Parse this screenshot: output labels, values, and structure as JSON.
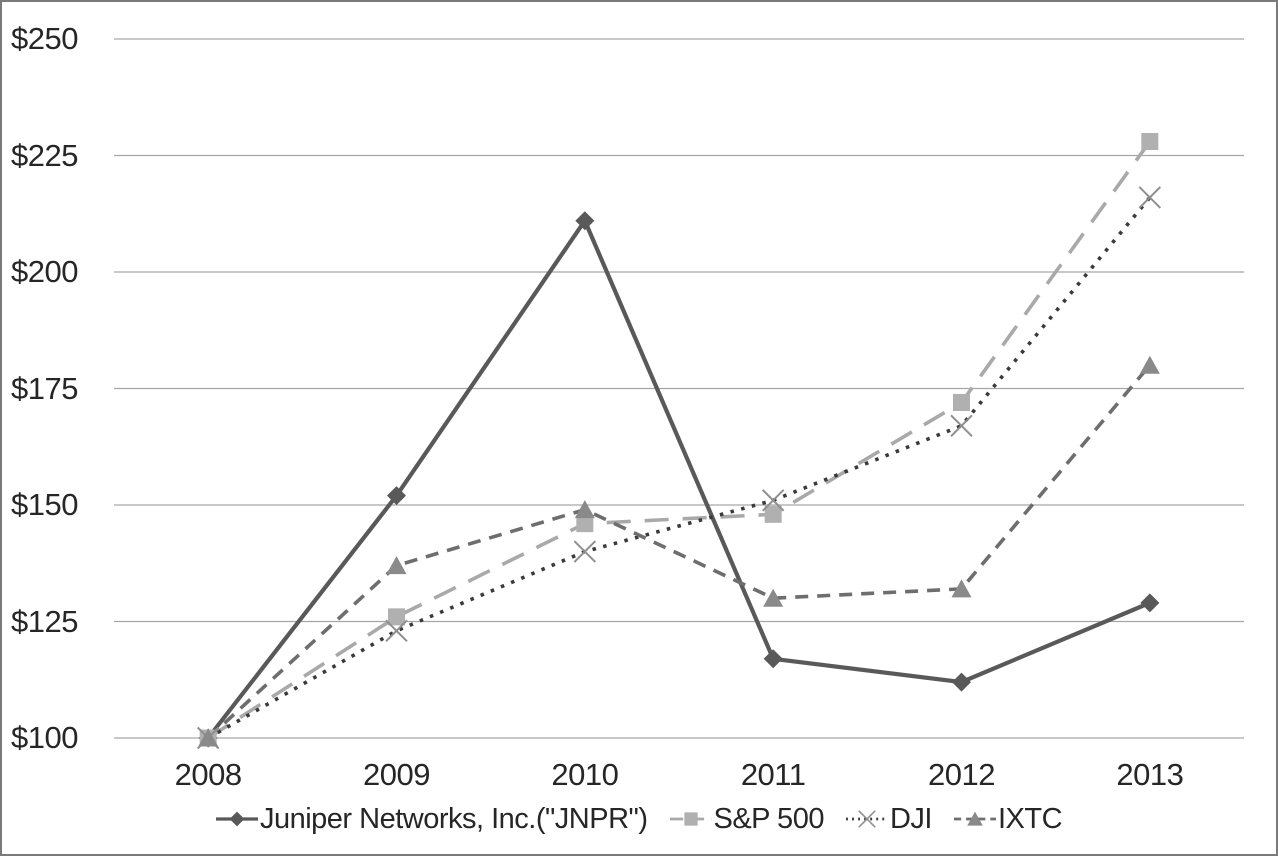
{
  "chart_data": {
    "type": "line",
    "title": "",
    "xlabel": "",
    "ylabel": "",
    "x_labels": [
      "2008",
      "2009",
      "2010",
      "2011",
      "2012",
      "2013"
    ],
    "y_ticks": [
      "$250",
      "$225",
      "$200",
      "$175",
      "$150",
      "$125",
      "$100"
    ],
    "y_tick_values": [
      250,
      225,
      200,
      175,
      150,
      125,
      100
    ],
    "ylim": [
      100,
      250
    ],
    "grid": true,
    "legend_position": "bottom",
    "series": [
      {
        "id": "jnpr",
        "name": "Juniper Networks, Inc.(\"JNPR\")",
        "values": [
          100,
          152,
          211,
          117,
          112,
          129
        ],
        "marker": "diamond",
        "line_style": "solid",
        "line_color": "#595959",
        "marker_color": "#595959"
      },
      {
        "id": "sp500",
        "name": "S&P 500",
        "values": [
          100,
          126,
          146,
          148,
          172,
          228
        ],
        "marker": "square",
        "line_style": "long-dash",
        "line_color": "#a9a9a9",
        "marker_color": "#b0b0b0"
      },
      {
        "id": "dji",
        "name": "DJI",
        "values": [
          100,
          123,
          140,
          151,
          167,
          216
        ],
        "marker": "x",
        "line_style": "dotted",
        "line_color": "#3a3a3a",
        "marker_color": "#8f8f8f"
      },
      {
        "id": "ixtc",
        "name": "IXTC",
        "values": [
          100,
          137,
          149,
          130,
          132,
          180
        ],
        "marker": "triangle",
        "line_style": "dash",
        "line_color": "#6e6e6e",
        "marker_color": "#8a8a8a"
      }
    ],
    "colors": {
      "grid": "#a6a6a6",
      "border": "#7a7a7a",
      "text": "#262626",
      "background": "#ffffff"
    }
  }
}
